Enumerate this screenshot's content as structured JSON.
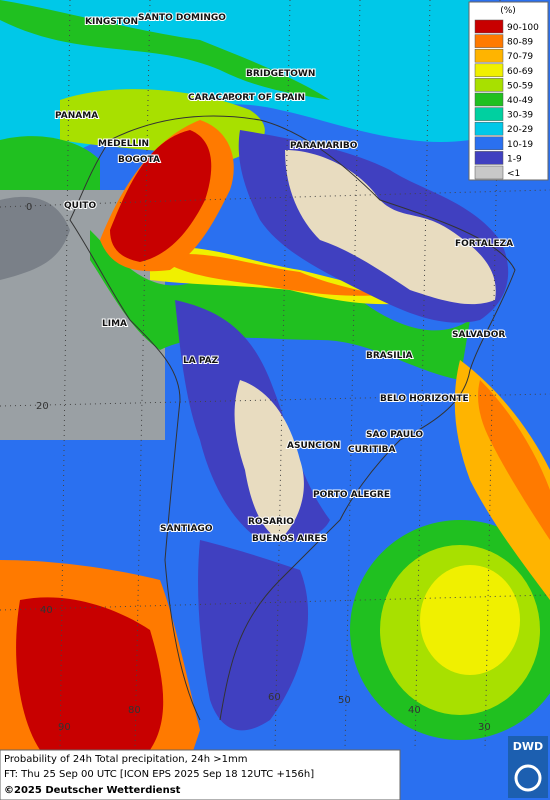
{
  "legend": {
    "title": "(%)",
    "items": [
      {
        "label": "90-100",
        "color": "#c80000"
      },
      {
        "label": "80-89",
        "color": "#ff7a00"
      },
      {
        "label": "70-79",
        "color": "#ffb400"
      },
      {
        "label": "60-69",
        "color": "#f0f000"
      },
      {
        "label": "50-59",
        "color": "#a8e000"
      },
      {
        "label": "40-49",
        "color": "#20c020"
      },
      {
        "label": "30-39",
        "color": "#00d0a0"
      },
      {
        "label": "20-29",
        "color": "#00c8e8"
      },
      {
        "label": "10-19",
        "color": "#2a70f0"
      },
      {
        "label": "1-9",
        "color": "#4040c0"
      },
      {
        "label": "<1",
        "color": "#c8c8c8"
      }
    ]
  },
  "cities": [
    "KINGSTON",
    "SANTO DOMINGO",
    "BRIDGETOWN",
    "PANAMA",
    "CARACAS",
    "PORT OF SPAIN",
    "MEDELLIN",
    "PARAMARIBO",
    "BOGOTA",
    "QUITO",
    "FORTALEZA",
    "LIMA",
    "SALVADOR",
    "LA PAZ",
    "BRASILIA",
    "BELO HORIZONTE",
    "SAO PAULO",
    "ASUNCION",
    "CURITIBA",
    "PORTO ALEGRE",
    "ROSARIO",
    "SANTIAGO",
    "BUENOS AIRES"
  ],
  "latitude_labels": [
    0,
    20,
    40
  ],
  "longitude_labels": [
    90,
    80,
    60,
    50,
    40,
    30
  ],
  "footer": {
    "line1": "Probability of 24h Total precipitation, 24h >1mm",
    "line2": "FT: Thu 25 Sep 00 UTC [ICON EPS 2025 Sep 18 12UTC +156h]",
    "copyright": "©2025 Deutscher Wetterdienst",
    "logo": "DWD"
  }
}
